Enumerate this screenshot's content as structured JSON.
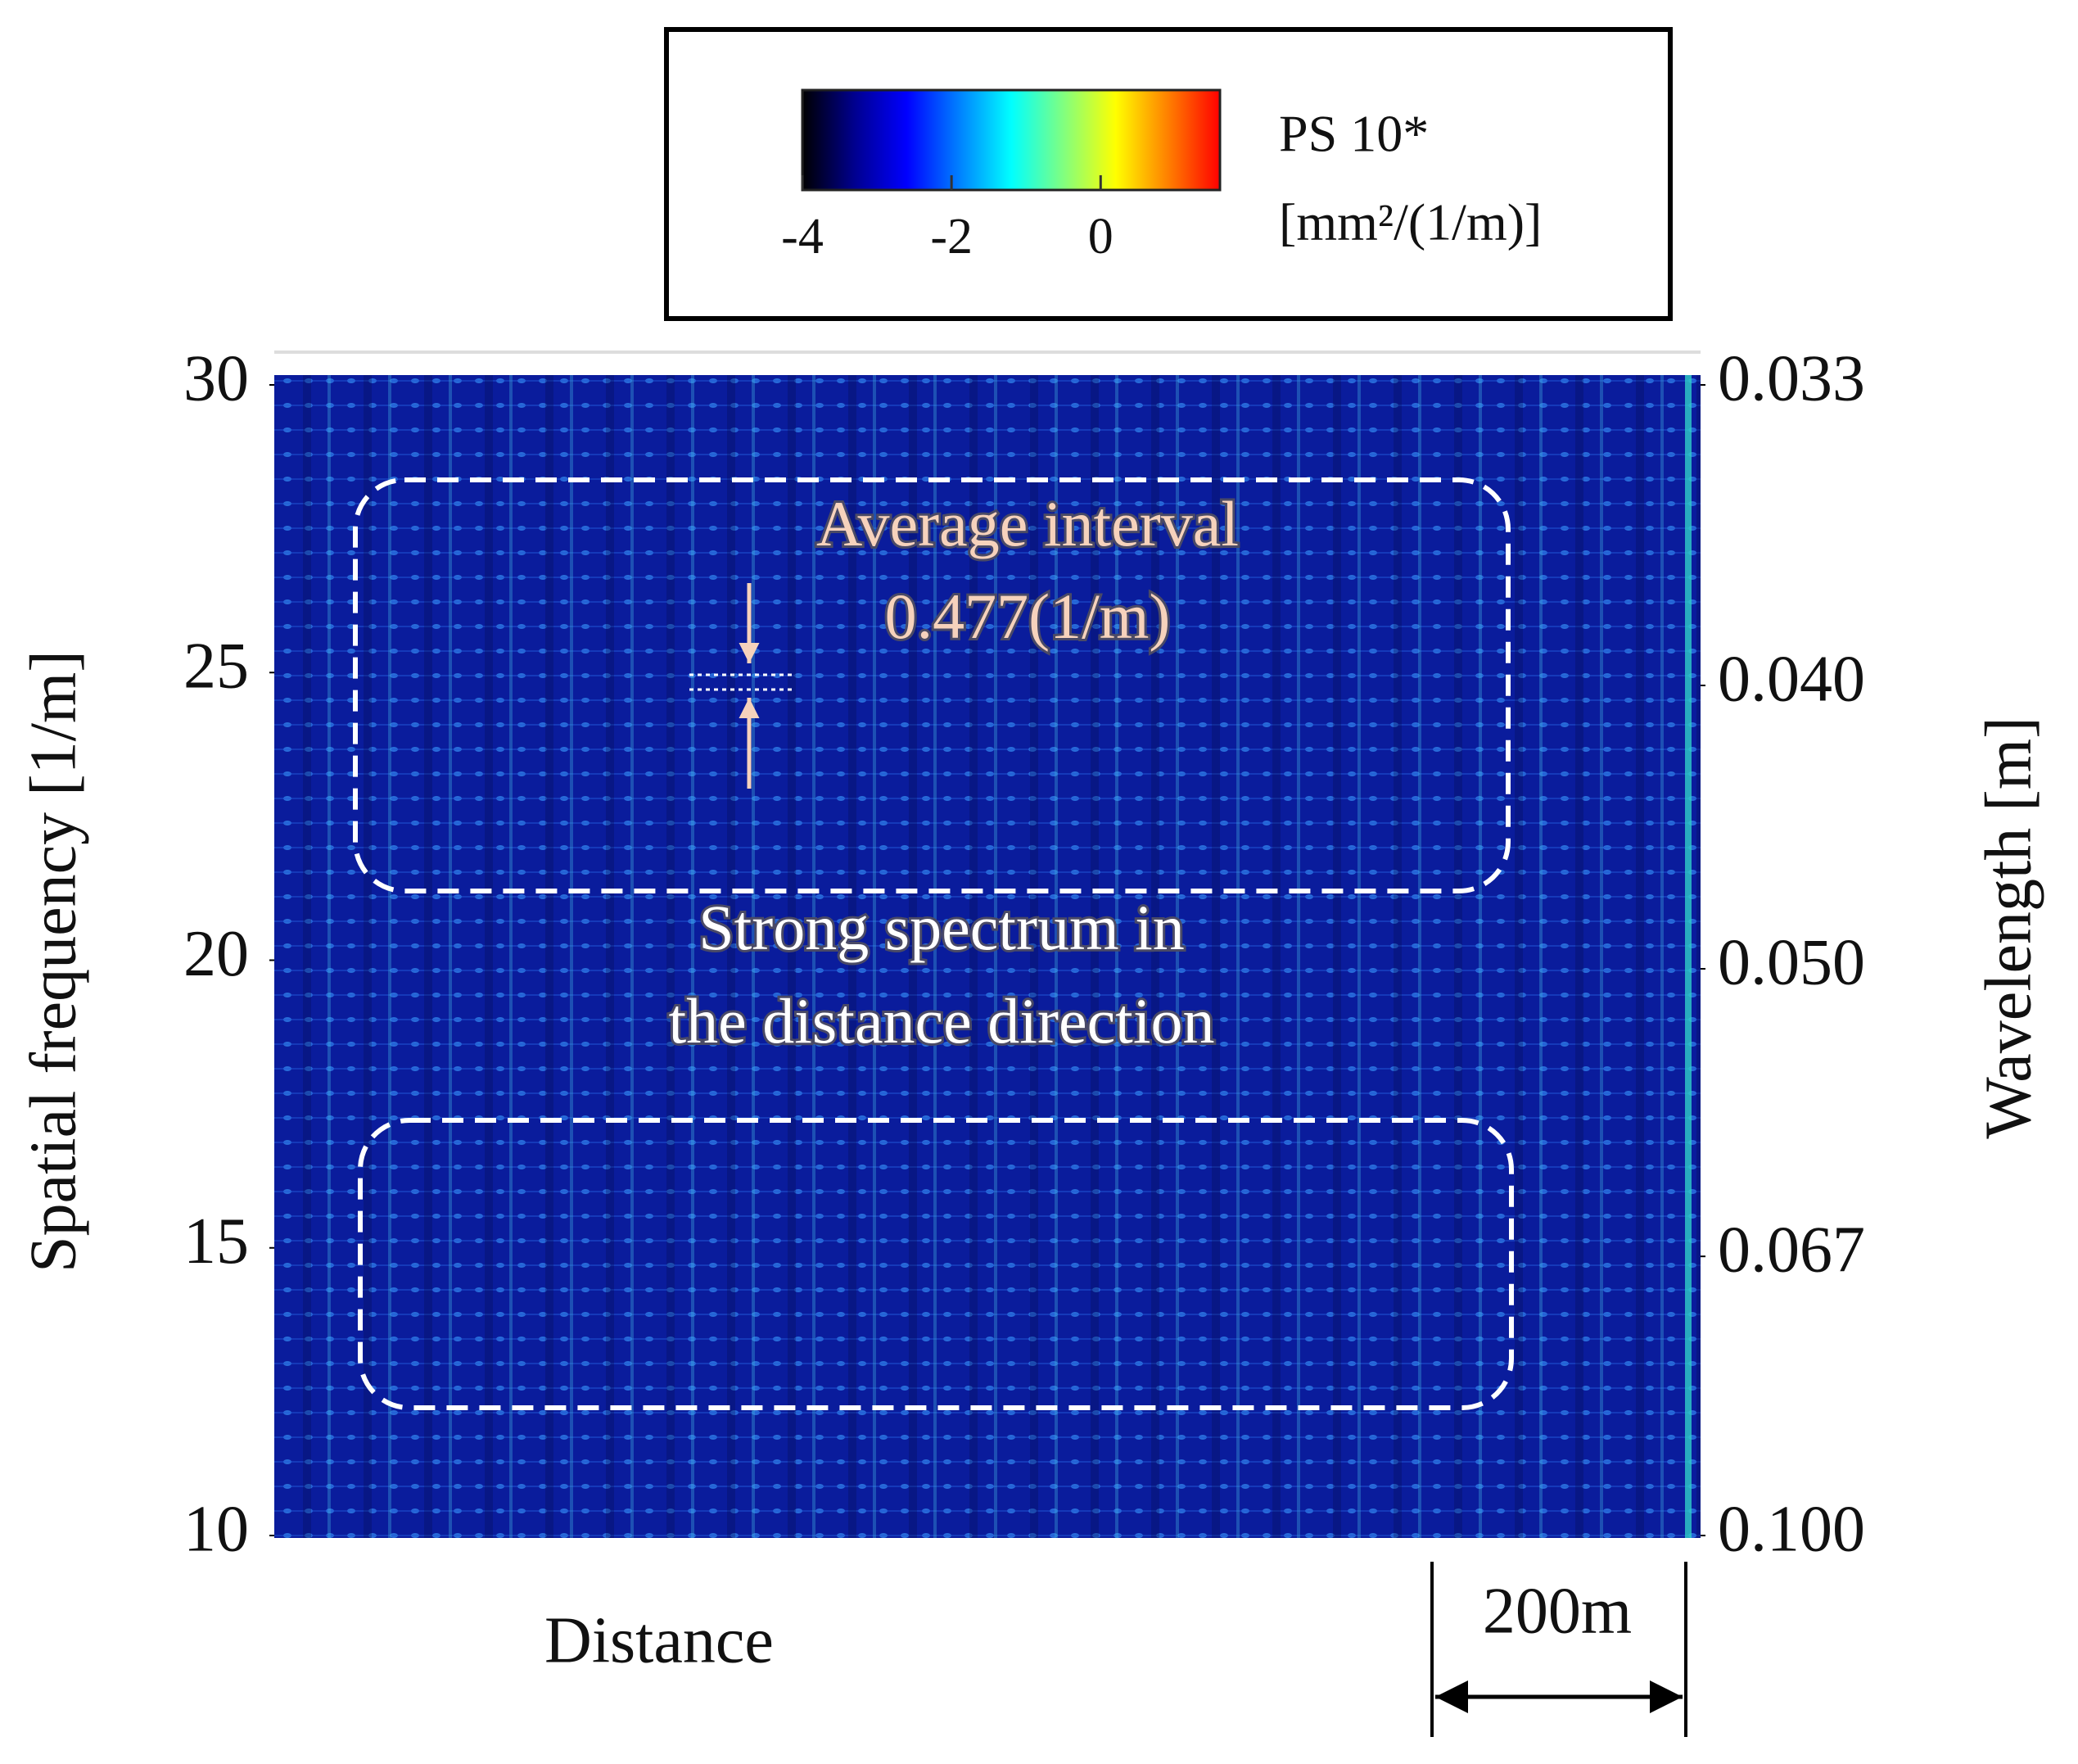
{
  "chart_data": {
    "type": "spectrogram",
    "colorbar": {
      "label": [
        "PS 10*",
        "[mm²/(1/m)]"
      ],
      "clim": [
        -4,
        1.6
      ],
      "ticks": [
        -4,
        -2,
        0
      ],
      "colormap": [
        "#000000",
        "#00008f",
        "#0000ff",
        "#0080ff",
        "#00ffff",
        "#80ff80",
        "#ffff00",
        "#ff8000",
        "#ff0000"
      ]
    },
    "ylabel": "Spatial frequency [1/m]",
    "ylim": [
      10,
      30
    ],
    "yticks": [
      10,
      15,
      20,
      25,
      30
    ],
    "y2label": "Wavelength [m]",
    "y2scale": "reciprocal",
    "y2lim": [
      0.1,
      0.033
    ],
    "y2ticks": [
      {
        "value": 0.1,
        "label": "0.100"
      },
      {
        "value": 0.067,
        "label": "0.067"
      },
      {
        "value": 0.05,
        "label": "0.050"
      },
      {
        "value": 0.04,
        "label": "0.040"
      },
      {
        "value": 0.033,
        "label": "0.033"
      }
    ],
    "xlabel": "Distance",
    "scale_bar": {
      "label": "200m"
    },
    "annotations": [
      {
        "text": [
          "Average  interval",
          "0.477(1/m)"
        ]
      },
      {
        "text": [
          "Strong spectrum in",
          "the distance direction"
        ]
      }
    ]
  }
}
